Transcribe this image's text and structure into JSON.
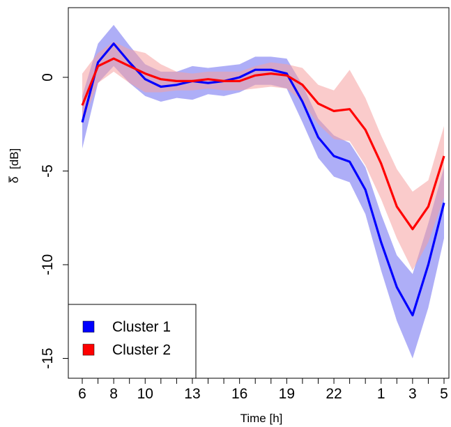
{
  "chart_data": {
    "type": "line",
    "xlabel": "Time [h]",
    "ylabel_symbol": "δ",
    "ylabel_unit": "[dB]",
    "x": [
      "6",
      "7",
      "8",
      "9",
      "10",
      "11",
      "12",
      "13",
      "14",
      "15",
      "16",
      "17",
      "18",
      "19",
      "20",
      "21",
      "22",
      "23",
      "24",
      "1",
      "2",
      "3",
      "4",
      "5"
    ],
    "x_ticks": [
      "6",
      "8",
      "10",
      "13",
      "16",
      "19",
      "22",
      "1",
      "3",
      "5"
    ],
    "y_ticks": [
      "0",
      "-5",
      "-10",
      "-15"
    ],
    "ylim": [
      -16,
      3.8
    ],
    "grid": false,
    "legend_position": "bottom-left",
    "series": [
      {
        "name": "Cluster 1",
        "color": "#0000ff",
        "band_color": "#6b6bf0",
        "values": [
          -2.4,
          0.8,
          1.8,
          0.8,
          -0.1,
          -0.5,
          -0.4,
          -0.2,
          -0.3,
          -0.2,
          0.0,
          0.4,
          0.4,
          0.2,
          -1.3,
          -3.2,
          -4.2,
          -4.5,
          -6.0,
          -8.8,
          -11.2,
          -12.7,
          -10.0,
          -6.7
        ],
        "lower": [
          -3.8,
          -0.3,
          0.6,
          -0.3,
          -1.0,
          -1.3,
          -1.1,
          -1.2,
          -0.9,
          -1.0,
          -0.8,
          -0.4,
          -0.4,
          -0.6,
          -2.4,
          -4.3,
          -5.3,
          -5.6,
          -7.3,
          -10.3,
          -13.0,
          -15.0,
          -12.3,
          -8.6
        ],
        "upper": [
          -1.0,
          1.8,
          2.8,
          1.7,
          0.7,
          0.3,
          0.3,
          0.6,
          0.5,
          0.6,
          0.7,
          1.1,
          1.1,
          1.0,
          -0.4,
          -2.2,
          -3.1,
          -3.5,
          -4.8,
          -7.3,
          -9.5,
          -10.5,
          -7.8,
          -4.8
        ]
      },
      {
        "name": "Cluster 2",
        "color": "#ff0000",
        "band_color": "#f5a0a0",
        "values": [
          -1.5,
          0.6,
          1.0,
          0.6,
          0.2,
          -0.1,
          -0.2,
          -0.2,
          -0.1,
          -0.2,
          -0.2,
          0.1,
          0.2,
          0.1,
          -0.4,
          -1.4,
          -1.8,
          -1.7,
          -2.8,
          -4.6,
          -6.9,
          -8.1,
          -6.9,
          -4.2
        ],
        "lower": [
          -2.5,
          -0.3,
          0.3,
          -0.3,
          -0.8,
          -0.8,
          -0.7,
          -0.7,
          -0.6,
          -0.7,
          -0.7,
          -0.6,
          -0.5,
          -0.6,
          -1.3,
          -2.5,
          -3.3,
          -3.4,
          -4.7,
          -6.5,
          -8.6,
          -10.3,
          -8.8,
          -6.4
        ],
        "upper": [
          0.2,
          1.3,
          1.9,
          1.5,
          1.3,
          0.7,
          0.3,
          0.2,
          0.3,
          0.3,
          0.3,
          0.6,
          0.8,
          0.7,
          0.5,
          -0.4,
          -0.7,
          0.4,
          -1.1,
          -3.1,
          -4.9,
          -6.1,
          -5.5,
          -2.6
        ]
      }
    ]
  }
}
